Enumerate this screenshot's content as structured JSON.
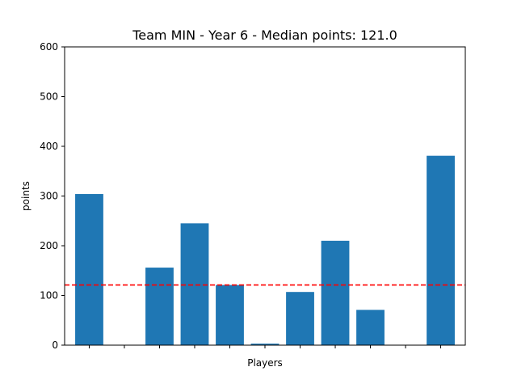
{
  "chart_data": {
    "type": "bar",
    "title": "Team MIN - Year 6 - Median points: 121.0",
    "xlabel": "Players",
    "ylabel": "points",
    "ylim": [
      0,
      600
    ],
    "yticks": [
      0,
      100,
      200,
      300,
      400,
      500,
      600
    ],
    "values": [
      304,
      0,
      156,
      245,
      121,
      3,
      107,
      210,
      71,
      0,
      381
    ],
    "reference_line": {
      "value": 121.0,
      "style": "dashed",
      "color": "#ff0000"
    },
    "bar_color": "#1f77b4",
    "grid": false
  }
}
